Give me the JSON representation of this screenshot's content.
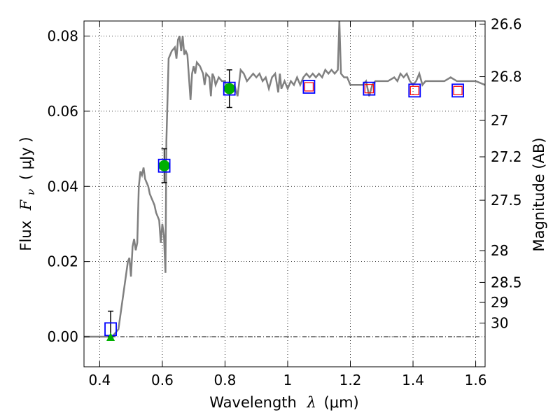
{
  "chart_data": {
    "type": "scatter",
    "xlabel": "Wavelength",
    "xlabel_symbol": "λ",
    "xlabel_unit": "(μm)",
    "ylabel": "Flux",
    "ylabel_symbol": "F",
    "ylabel_subscript": "ν",
    "ylabel_unit": "( μJy )",
    "ylabel_right": "Magnitude (AB)",
    "xlim": [
      0.35,
      1.63
    ],
    "ylim": [
      -0.008,
      0.084
    ],
    "grid": true,
    "x_ticks": [
      {
        "value": 0.4,
        "label": "0.4"
      },
      {
        "value": 0.6,
        "label": "0.6"
      },
      {
        "value": 0.8,
        "label": "0.8"
      },
      {
        "value": 1.0,
        "label": "1"
      },
      {
        "value": 1.2,
        "label": "1.2"
      },
      {
        "value": 1.4,
        "label": "1.4"
      },
      {
        "value": 1.6,
        "label": "1.6"
      }
    ],
    "y_ticks": [
      {
        "value": 0.0,
        "label": "0.00"
      },
      {
        "value": 0.02,
        "label": "0.02"
      },
      {
        "value": 0.04,
        "label": "0.04"
      },
      {
        "value": 0.06,
        "label": "0.06"
      },
      {
        "value": 0.08,
        "label": "0.08"
      }
    ],
    "right_ticks": [
      {
        "value": 26.6,
        "label": "26.6"
      },
      {
        "value": 26.8,
        "label": "26.8"
      },
      {
        "value": 27.0,
        "label": "27"
      },
      {
        "value": 27.2,
        "label": "27.2"
      },
      {
        "value": 27.5,
        "label": "27.5"
      },
      {
        "value": 28.0,
        "label": "28"
      },
      {
        "value": 28.5,
        "label": "28.5"
      },
      {
        "value": 29.0,
        "label": "29"
      },
      {
        "value": 30.0,
        "label": "30"
      }
    ],
    "model_spectrum": {
      "color": "#808080",
      "points": [
        [
          0.35,
          0.0
        ],
        [
          0.44,
          0.0
        ],
        [
          0.46,
          0.002
        ],
        [
          0.47,
          0.008
        ],
        [
          0.48,
          0.014
        ],
        [
          0.49,
          0.02
        ],
        [
          0.495,
          0.021
        ],
        [
          0.5,
          0.016
        ],
        [
          0.505,
          0.024
        ],
        [
          0.51,
          0.026
        ],
        [
          0.515,
          0.023
        ],
        [
          0.52,
          0.025
        ],
        [
          0.525,
          0.04
        ],
        [
          0.53,
          0.044
        ],
        [
          0.535,
          0.043
        ],
        [
          0.54,
          0.045
        ],
        [
          0.545,
          0.042
        ],
        [
          0.55,
          0.041
        ],
        [
          0.555,
          0.04
        ],
        [
          0.56,
          0.038
        ],
        [
          0.565,
          0.037
        ],
        [
          0.57,
          0.036
        ],
        [
          0.575,
          0.035
        ],
        [
          0.58,
          0.033
        ],
        [
          0.585,
          0.032
        ],
        [
          0.59,
          0.031
        ],
        [
          0.595,
          0.025
        ],
        [
          0.6,
          0.03
        ],
        [
          0.605,
          0.027
        ],
        [
          0.61,
          0.017
        ],
        [
          0.613,
          0.052
        ],
        [
          0.62,
          0.074
        ],
        [
          0.63,
          0.076
        ],
        [
          0.64,
          0.077
        ],
        [
          0.645,
          0.074
        ],
        [
          0.65,
          0.079
        ],
        [
          0.655,
          0.08
        ],
        [
          0.66,
          0.076
        ],
        [
          0.665,
          0.08
        ],
        [
          0.67,
          0.075
        ],
        [
          0.675,
          0.076
        ],
        [
          0.68,
          0.075
        ],
        [
          0.69,
          0.063
        ],
        [
          0.695,
          0.07
        ],
        [
          0.7,
          0.072
        ],
        [
          0.705,
          0.07
        ],
        [
          0.71,
          0.073
        ],
        [
          0.72,
          0.072
        ],
        [
          0.73,
          0.07
        ],
        [
          0.735,
          0.067
        ],
        [
          0.74,
          0.07
        ],
        [
          0.75,
          0.069
        ],
        [
          0.755,
          0.064
        ],
        [
          0.76,
          0.07
        ],
        [
          0.765,
          0.069
        ],
        [
          0.77,
          0.067
        ],
        [
          0.78,
          0.069
        ],
        [
          0.79,
          0.068
        ],
        [
          0.8,
          0.068
        ],
        [
          0.81,
          0.065
        ],
        [
          0.82,
          0.066
        ],
        [
          0.83,
          0.067
        ],
        [
          0.84,
          0.064
        ],
        [
          0.85,
          0.071
        ],
        [
          0.86,
          0.07
        ],
        [
          0.87,
          0.068
        ],
        [
          0.88,
          0.069
        ],
        [
          0.89,
          0.07
        ],
        [
          0.9,
          0.069
        ],
        [
          0.91,
          0.07
        ],
        [
          0.92,
          0.068
        ],
        [
          0.93,
          0.069
        ],
        [
          0.94,
          0.066
        ],
        [
          0.95,
          0.069
        ],
        [
          0.96,
          0.07
        ],
        [
          0.97,
          0.065
        ],
        [
          0.975,
          0.07
        ],
        [
          0.98,
          0.066
        ],
        [
          0.99,
          0.068
        ],
        [
          1.0,
          0.066
        ],
        [
          1.01,
          0.068
        ],
        [
          1.02,
          0.067
        ],
        [
          1.03,
          0.069
        ],
        [
          1.04,
          0.067
        ],
        [
          1.05,
          0.069
        ],
        [
          1.06,
          0.07
        ],
        [
          1.07,
          0.069
        ],
        [
          1.08,
          0.07
        ],
        [
          1.09,
          0.069
        ],
        [
          1.1,
          0.07
        ],
        [
          1.11,
          0.069
        ],
        [
          1.12,
          0.071
        ],
        [
          1.13,
          0.07
        ],
        [
          1.14,
          0.071
        ],
        [
          1.15,
          0.07
        ],
        [
          1.16,
          0.071
        ],
        [
          1.165,
          0.084
        ],
        [
          1.17,
          0.07
        ],
        [
          1.18,
          0.069
        ],
        [
          1.19,
          0.069
        ],
        [
          1.2,
          0.067
        ],
        [
          1.22,
          0.067
        ],
        [
          1.24,
          0.067
        ],
        [
          1.25,
          0.068
        ],
        [
          1.26,
          0.064
        ],
        [
          1.27,
          0.067
        ],
        [
          1.28,
          0.068
        ],
        [
          1.3,
          0.068
        ],
        [
          1.32,
          0.068
        ],
        [
          1.34,
          0.069
        ],
        [
          1.35,
          0.068
        ],
        [
          1.36,
          0.07
        ],
        [
          1.37,
          0.069
        ],
        [
          1.38,
          0.07
        ],
        [
          1.39,
          0.068
        ],
        [
          1.4,
          0.067
        ],
        [
          1.41,
          0.068
        ],
        [
          1.42,
          0.07
        ],
        [
          1.43,
          0.067
        ],
        [
          1.44,
          0.068
        ],
        [
          1.46,
          0.068
        ],
        [
          1.48,
          0.068
        ],
        [
          1.5,
          0.068
        ],
        [
          1.52,
          0.069
        ],
        [
          1.54,
          0.068
        ],
        [
          1.56,
          0.068
        ],
        [
          1.58,
          0.068
        ],
        [
          1.6,
          0.068
        ],
        [
          1.63,
          0.067
        ]
      ]
    },
    "observed_points": [
      {
        "x": 0.435,
        "y": 0.002,
        "err_low": 0.0,
        "err_high": 0.0068,
        "marker": "square",
        "color": "#0000ff"
      },
      {
        "x": 0.606,
        "y": 0.0455,
        "err_low": 0.041,
        "err_high": 0.05,
        "marker": "square",
        "color": "#0000ff"
      },
      {
        "x": 0.814,
        "y": 0.066,
        "err_low": 0.061,
        "err_high": 0.071,
        "marker": "square",
        "color": "#0000ff"
      },
      {
        "x": 1.068,
        "y": 0.0665,
        "marker": "square",
        "color": "#0000ff"
      },
      {
        "x": 1.26,
        "y": 0.066,
        "marker": "square",
        "color": "#0000ff"
      },
      {
        "x": 1.405,
        "y": 0.0655,
        "marker": "square",
        "color": "#0000ff"
      },
      {
        "x": 1.543,
        "y": 0.0655,
        "marker": "square",
        "color": "#0000ff"
      }
    ],
    "model_band_points": [
      {
        "x": 0.606,
        "y": 0.0455,
        "marker": "circle",
        "color": "#00b000"
      },
      {
        "x": 0.814,
        "y": 0.066,
        "marker": "circle",
        "color": "#00b000"
      },
      {
        "x": 1.068,
        "y": 0.0665,
        "marker": "square",
        "color": "#ff0000"
      },
      {
        "x": 1.26,
        "y": 0.066,
        "marker": "square",
        "color": "#ff0000"
      },
      {
        "x": 1.405,
        "y": 0.0655,
        "marker": "square",
        "color": "#ff0000"
      },
      {
        "x": 1.543,
        "y": 0.0655,
        "marker": "square",
        "color": "#ff0000"
      }
    ],
    "upper_limit_points": [
      {
        "x": 0.435,
        "y": 0.0,
        "marker": "triangle",
        "color": "#00b000"
      }
    ]
  }
}
